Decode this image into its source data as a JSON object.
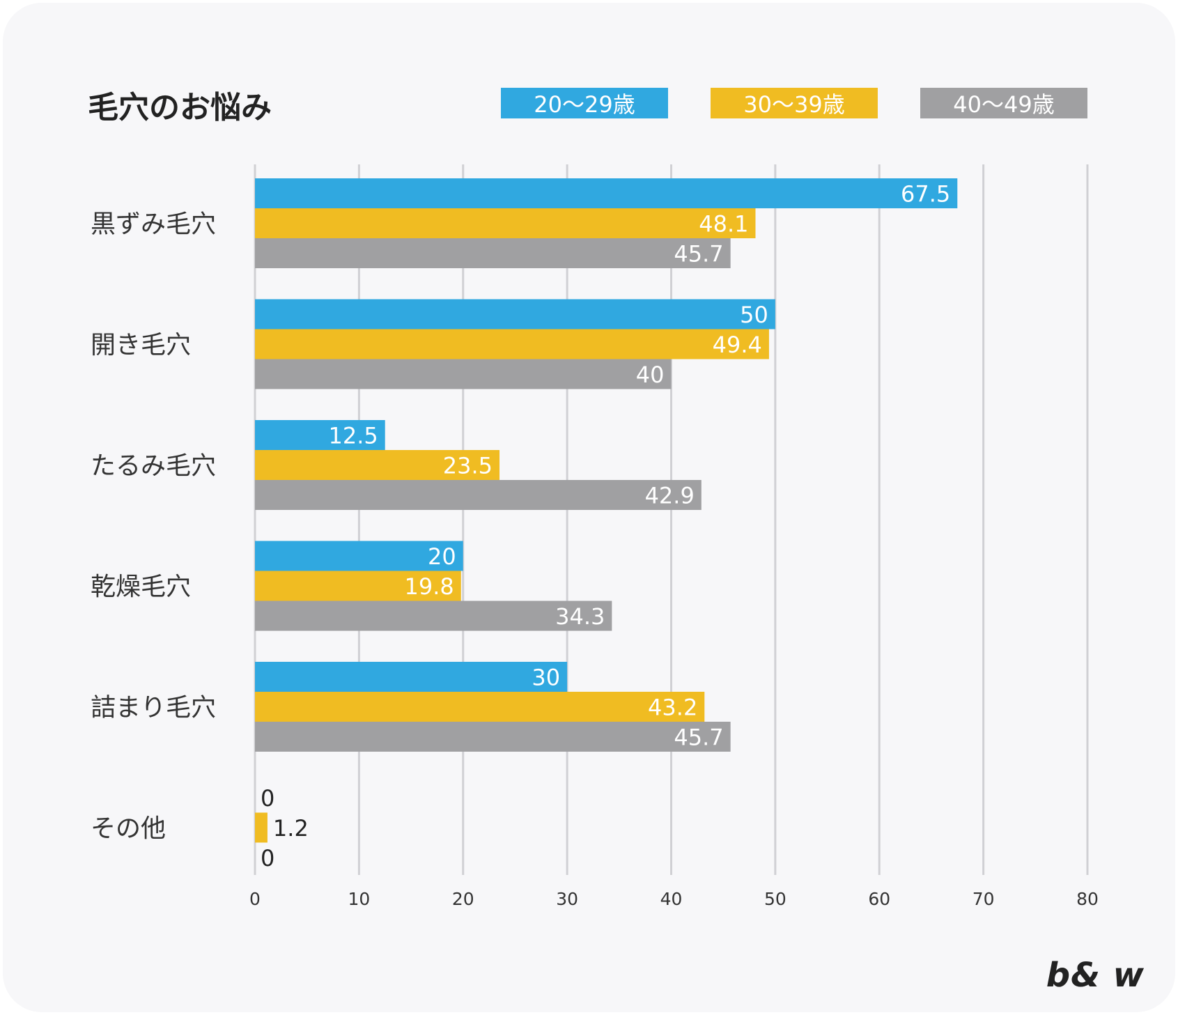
{
  "chart_data": {
    "type": "bar",
    "orientation": "horizontal",
    "title": "毛穴のお悩み",
    "categories": [
      "黒ずみ毛穴",
      "開き毛穴",
      "たるみ毛穴",
      "乾燥毛穴",
      "詰まり毛穴",
      "その他"
    ],
    "series": [
      {
        "name": "20〜29歳",
        "color": "#30a8e0",
        "values": [
          67.5,
          50,
          12.5,
          20,
          30,
          0
        ]
      },
      {
        "name": "30〜39歳",
        "color": "#f0bc22",
        "values": [
          48.1,
          49.4,
          23.5,
          19.8,
          43.2,
          1.2
        ]
      },
      {
        "name": "40〜49歳",
        "color": "#a0a0a2",
        "values": [
          45.7,
          40,
          42.9,
          34.3,
          45.7,
          0
        ]
      }
    ],
    "xlim": [
      0,
      80
    ],
    "xticks": [
      0,
      10,
      20,
      30,
      40,
      50,
      60,
      70,
      80
    ],
    "xlabel": "",
    "ylabel": "",
    "grid": true,
    "legend_position": "top-right"
  },
  "brand": "b& w",
  "colors": {
    "background": "#f7f7f9",
    "grid": "#d0d0d4",
    "text": "#333333"
  }
}
